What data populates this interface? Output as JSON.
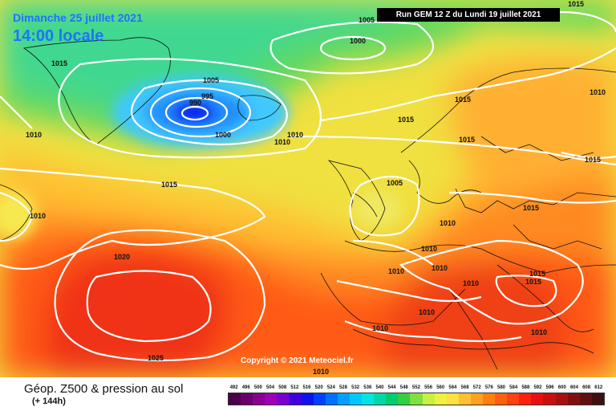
{
  "header": {
    "date": "Dimanche 25 juillet 2021",
    "time": "14:00 locale",
    "run": "Run GEM 12 Z du Lundi 19 juillet 2021"
  },
  "footer": {
    "title": "Géop. Z500 & pression au sol",
    "lead": "(+ 144h)",
    "copyright": "Copyright © 2021 Meteociel.fr"
  },
  "legend": {
    "values": [
      "492",
      "496",
      "500",
      "504",
      "508",
      "512",
      "516",
      "520",
      "524",
      "528",
      "532",
      "536",
      "540",
      "544",
      "548",
      "552",
      "556",
      "560",
      "564",
      "568",
      "572",
      "576",
      "580",
      "584",
      "588",
      "592",
      "596",
      "600",
      "604",
      "608",
      "612"
    ],
    "colors": [
      "#4b004b",
      "#6a006a",
      "#8a0090",
      "#a000b8",
      "#7a00d0",
      "#4000e0",
      "#1010f0",
      "#0040ff",
      "#0070ff",
      "#00a0ff",
      "#00c8ff",
      "#00e6e6",
      "#00d8a8",
      "#00cc70",
      "#30d040",
      "#80e040",
      "#c8f040",
      "#f0f040",
      "#ffe040",
      "#ffc030",
      "#ffa020",
      "#ff8010",
      "#ff6010",
      "#ff4010",
      "#ff2010",
      "#e81010",
      "#c81010",
      "#a81010",
      "#801010",
      "#601010",
      "#401010"
    ]
  },
  "isobars": [
    "1005",
    "1000",
    "1015",
    "1005",
    "995",
    "990",
    "1000",
    "1010",
    "1010",
    "1010",
    "1015",
    "1015",
    "1015",
    "1005",
    "1010",
    "1010",
    "1010",
    "1015",
    "1015",
    "1010",
    "1015",
    "1015",
    "1015",
    "1010",
    "1010",
    "1010",
    "1010",
    "1010",
    "1020",
    "1025",
    "1010",
    "1015",
    "1010"
  ]
}
